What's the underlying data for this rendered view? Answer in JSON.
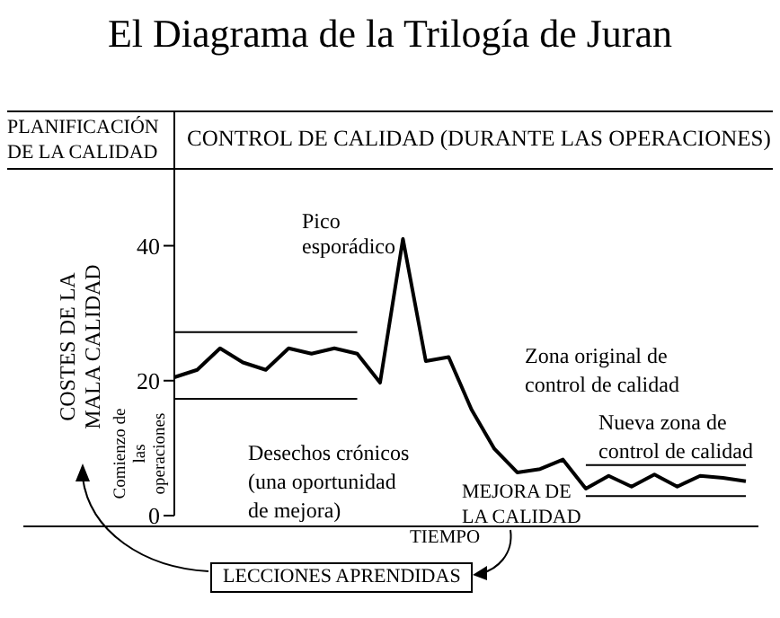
{
  "chart_data": {
    "type": "line",
    "title": "El Diagrama de la Trilogía de Juran",
    "xlabel": "TIEMPO",
    "ylabel": "COSTES DE LA MALA CALIDAD",
    "annotations": [
      "PLANIFICACIÓN DE LA CALIDAD",
      "CONTROL DE CALIDAD (DURANTE LAS OPERACIONES)",
      "Pico esporádico",
      "Zona original de control de calidad",
      "Nueva zona de control de calidad",
      "Desechos crónicos (una oportunidad de mejora)",
      "Comienzo de las operaciones",
      "MEJORA DE LA CALIDAD",
      "LECCIONES APRENDIDAS"
    ],
    "categories": [
      null,
      null,
      null,
      null,
      null,
      null,
      null,
      null,
      null,
      null,
      null,
      null,
      null,
      null,
      null,
      null,
      null,
      null,
      null,
      null,
      null,
      null,
      null,
      null,
      null,
      null
    ],
    "ylim": [
      0,
      45
    ],
    "yticks": [
      0,
      20,
      40
    ],
    "tick_labels": "y",
    "series": [
      {
        "color": "#000000",
        "values": [
          20.5,
          21.6,
          24.8,
          22.7,
          21.6,
          24.8,
          24,
          24.8,
          24,
          19.7,
          41,
          22.9,
          23.5,
          15.7,
          9.9,
          6.4,
          6.9,
          8.3,
          4,
          5.9,
          4.3,
          6.1,
          4.3,
          5.9,
          5.6,
          5.1
        ]
      },
      {
        "color": "#000000",
        "values": [
          27.2,
          27.2,
          27.2,
          27.2,
          27.2,
          27.2,
          27.2,
          27.2,
          27.2,
          null,
          null,
          null,
          null,
          null,
          null,
          null,
          null,
          null,
          null,
          null,
          null,
          null,
          null,
          null,
          null,
          null
        ]
      },
      {
        "color": "#000000",
        "values": [
          17.3,
          17.3,
          17.3,
          17.3,
          17.3,
          17.3,
          17.3,
          17.3,
          17.3,
          null,
          null,
          null,
          null,
          null,
          null,
          null,
          null,
          null,
          null,
          null,
          null,
          null,
          null,
          null,
          null,
          null
        ]
      },
      {
        "color": "#000000",
        "values": [
          null,
          null,
          null,
          null,
          null,
          null,
          null,
          null,
          null,
          null,
          null,
          null,
          null,
          null,
          null,
          null,
          null,
          null,
          7.5,
          7.5,
          7.5,
          7.5,
          7.5,
          7.5,
          7.5,
          7.5
        ]
      },
      {
        "color": "#000000",
        "values": [
          null,
          null,
          null,
          null,
          null,
          null,
          null,
          null,
          null,
          null,
          null,
          null,
          null,
          null,
          null,
          null,
          null,
          null,
          2.9,
          2.9,
          2.9,
          2.9,
          2.9,
          2.9,
          2.9,
          2.9
        ]
      }
    ]
  }
}
